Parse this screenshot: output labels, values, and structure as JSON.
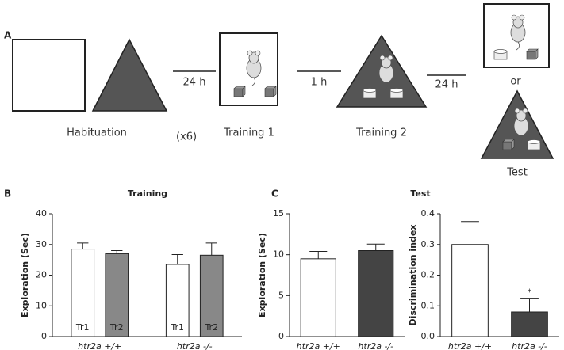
{
  "panel_labels": [
    "A",
    "B",
    "C"
  ],
  "protocol": {
    "habituation": "Habituation",
    "repeat": "(x6)",
    "delay_1": "24 h",
    "training_1": "Training 1",
    "delay_2": "1 h",
    "training_2": "Training 2",
    "delay_3": "24 h",
    "or": "or",
    "test": "Test"
  },
  "chart_data": [
    {
      "type": "bar",
      "title": "Training",
      "y_label": "Exploration (Sec)",
      "categories": [
        "htr2a +/+",
        "htr2a -/-"
      ],
      "series": [
        {
          "name": "Tr1",
          "color": "#ffffff",
          "values": [
            28.5,
            23.5
          ],
          "errors": [
            2,
            3.2
          ]
        },
        {
          "name": "Tr2",
          "color": "#888888",
          "values": [
            27,
            26.5
          ],
          "errors": [
            1,
            4
          ]
        }
      ],
      "ylim": [
        0,
        40
      ],
      "yticks": [
        0,
        10,
        20,
        30,
        40
      ]
    },
    {
      "type": "bar",
      "title": "Test",
      "y_label": "Exploration (Sec)",
      "categories": [
        "htr2a +/+",
        "htr2a -/-"
      ],
      "values": [
        9.5,
        10.5
      ],
      "errors": [
        0.9,
        0.8
      ],
      "colors": [
        "#ffffff",
        "#444444"
      ],
      "ylim": [
        0,
        15
      ],
      "yticks": [
        0,
        5,
        10,
        15
      ]
    },
    {
      "type": "bar",
      "y_label": "Discrimination index",
      "categories": [
        "htr2a +/+",
        "htr2a -/-"
      ],
      "values": [
        0.3,
        0.08
      ],
      "errors": [
        0.075,
        0.045
      ],
      "colors": [
        "#ffffff",
        "#444444"
      ],
      "annotations": [
        null,
        "*"
      ],
      "ylim": [
        0,
        0.4
      ],
      "yticks": [
        {
          "value": 0,
          "label": "0.0"
        },
        0.1,
        0.2,
        0.3,
        0.4
      ]
    }
  ]
}
